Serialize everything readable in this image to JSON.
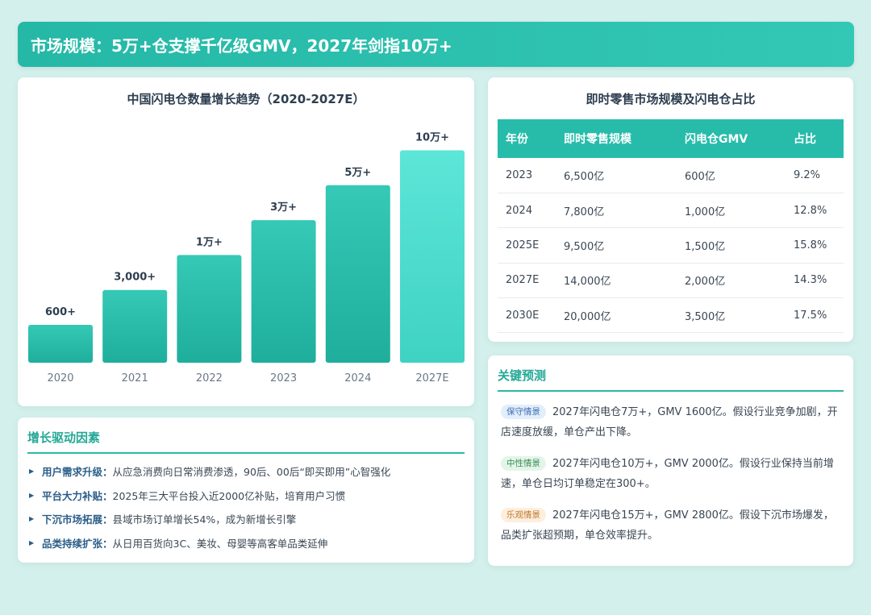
{
  "header": {
    "title": "市场规模：5万+仓支撑千亿级GMV，2027年剑指10万+"
  },
  "chart_data": {
    "type": "bar",
    "title": "中国闪电仓数量增长趋势（2020-2027E）",
    "categories": [
      "2020",
      "2021",
      "2022",
      "2023",
      "2024",
      "2027E"
    ],
    "values": [
      600,
      3000,
      10000,
      30000,
      50000,
      100000
    ],
    "data_labels": [
      "600+",
      "3,000+",
      "1万+",
      "3万+",
      "5万+",
      "10万+"
    ],
    "xlabel": "",
    "ylabel": "",
    "colors": {
      "bar_top": "#35c9b6",
      "bar_bottom": "#1fae9c",
      "bar_last_top": "#5ce6d8",
      "bar_last_bottom": "#3fd2c2"
    }
  },
  "table": {
    "title": "即时零售市场规模及闪电仓占比",
    "headers": [
      "年份",
      "即时零售规模",
      "闪电仓GMV",
      "占比"
    ],
    "rows": [
      [
        "2023",
        "6,500亿",
        "600亿",
        "9.2%"
      ],
      [
        "2024",
        "7,800亿",
        "1,000亿",
        "12.8%"
      ],
      [
        "2025E",
        "9,500亿",
        "1,500亿",
        "15.8%"
      ],
      [
        "2027E",
        "14,000亿",
        "2,000亿",
        "14.3%"
      ],
      [
        "2030E",
        "20,000亿",
        "3,500亿",
        "17.5%"
      ]
    ]
  },
  "drivers": {
    "title": "增长驱动因素",
    "items": [
      {
        "label": "用户需求升级：",
        "text": "从应急消费向日常消费渗透，90后、00后“即买即用”心智强化"
      },
      {
        "label": "平台大力补贴：",
        "text": "2025年三大平台投入近2000亿补贴，培育用户习惯"
      },
      {
        "label": "下沉市场拓展：",
        "text": "县域市场订单增长54%，成为新增长引擎"
      },
      {
        "label": "品类持续扩张：",
        "text": "从日用百货向3C、美妆、母婴等高客单品类延伸"
      }
    ]
  },
  "forecast": {
    "title": "关键预测",
    "scenarios": [
      {
        "tag": "保守情景",
        "text": "2027年闪电仓7万+，GMV 1600亿。假设行业竞争加剧，开店速度放缓，单仓产出下降。"
      },
      {
        "tag": "中性情景",
        "text": "2027年闪电仓10万+，GMV 2000亿。假设行业保持当前增速，单仓日均订单稳定在300+。"
      },
      {
        "tag": "乐观情景",
        "text": "2027年闪电仓15万+，GMV 2800亿。假设下沉市场爆发，品类扩张超预期，单仓效率提升。"
      }
    ]
  }
}
